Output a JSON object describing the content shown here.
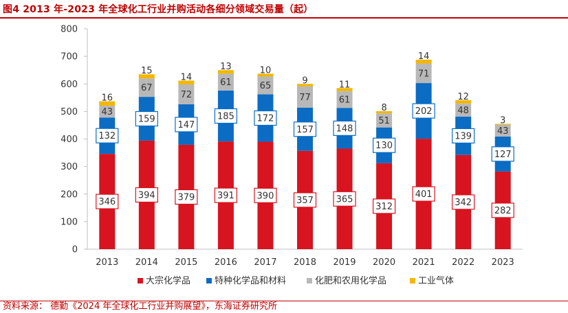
{
  "figure": {
    "title": "图4  2013 年-2023 年全球化工行业并购活动各细分领域交易量（起）",
    "source": "资料来源：  德勤《2024 年全球化工行业并购展望》，东海证券研究所"
  },
  "chart_data": {
    "type": "bar",
    "stacked": true,
    "categories": [
      "2013",
      "2014",
      "2015",
      "2016",
      "2017",
      "2018",
      "2019",
      "2020",
      "2021",
      "2022",
      "2023"
    ],
    "series": [
      {
        "name": "大宗化学品",
        "color": "#d7141f",
        "values": [
          346,
          394,
          379,
          391,
          390,
          357,
          365,
          312,
          401,
          342,
          282
        ]
      },
      {
        "name": "特种化学品和材料",
        "color": "#0b6cc4",
        "values": [
          132,
          159,
          147,
          185,
          172,
          157,
          148,
          130,
          202,
          139,
          127
        ]
      },
      {
        "name": "化肥和农用化学品",
        "color": "#b8b8b8",
        "values": [
          43,
          67,
          72,
          61,
          65,
          77,
          61,
          51,
          71,
          48,
          43
        ]
      },
      {
        "name": "工业气体",
        "color": "#f2b700",
        "values": [
          16,
          15,
          14,
          13,
          10,
          9,
          11,
          8,
          14,
          12,
          3
        ]
      }
    ],
    "ylim": [
      0,
      800
    ],
    "yticks": [
      0,
      100,
      200,
      300,
      400,
      500,
      600,
      700,
      800
    ],
    "grid": false,
    "legend": "bottom"
  }
}
